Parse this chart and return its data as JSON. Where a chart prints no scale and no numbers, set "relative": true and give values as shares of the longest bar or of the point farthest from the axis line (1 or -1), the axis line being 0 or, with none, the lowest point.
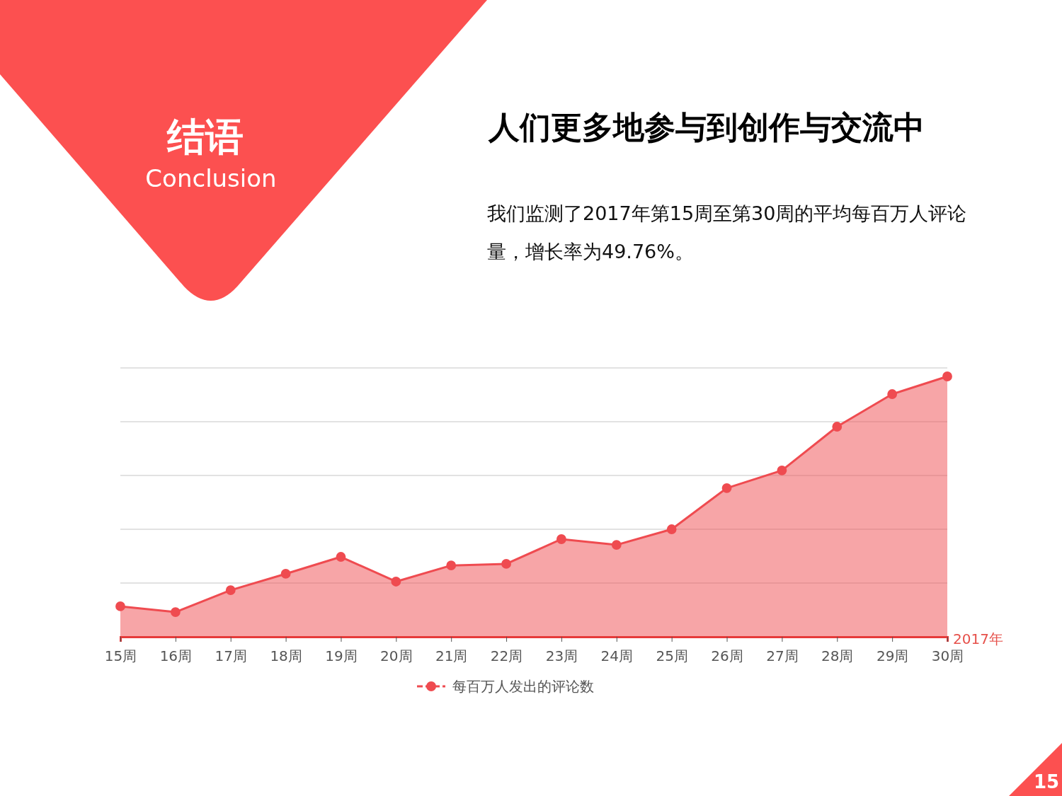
{
  "chart_data": {
    "type": "area",
    "title": "人们更多地参与到创作与交流中",
    "subtitle": "我们监测了2017年第15周至第30周的平均每百万人评论量，增长率为49.76%。",
    "xlabel": "2017年",
    "annotations": [
      "结语",
      "Conclusion",
      "15"
    ],
    "categories": [
      "15周",
      "16周",
      "17周",
      "18周",
      "19周",
      "20周",
      "21周",
      "22周",
      "23周",
      "24周",
      "25周",
      "26周",
      "27周",
      "28周",
      "29周",
      "30周"
    ],
    "series": [
      {
        "name": "每百万人发出的评论数",
        "color": "#ef4b50",
        "values": [
          0.117,
          0.095,
          0.179,
          0.242,
          0.307,
          0.212,
          0.274,
          0.28,
          0.375,
          0.353,
          0.413,
          0.571,
          0.639,
          0.807,
          0.932,
          1.0
        ]
      }
    ],
    "relative": true,
    "grid": true,
    "legend": "bottom",
    "marker": "circle",
    "line_style": "solid"
  }
}
